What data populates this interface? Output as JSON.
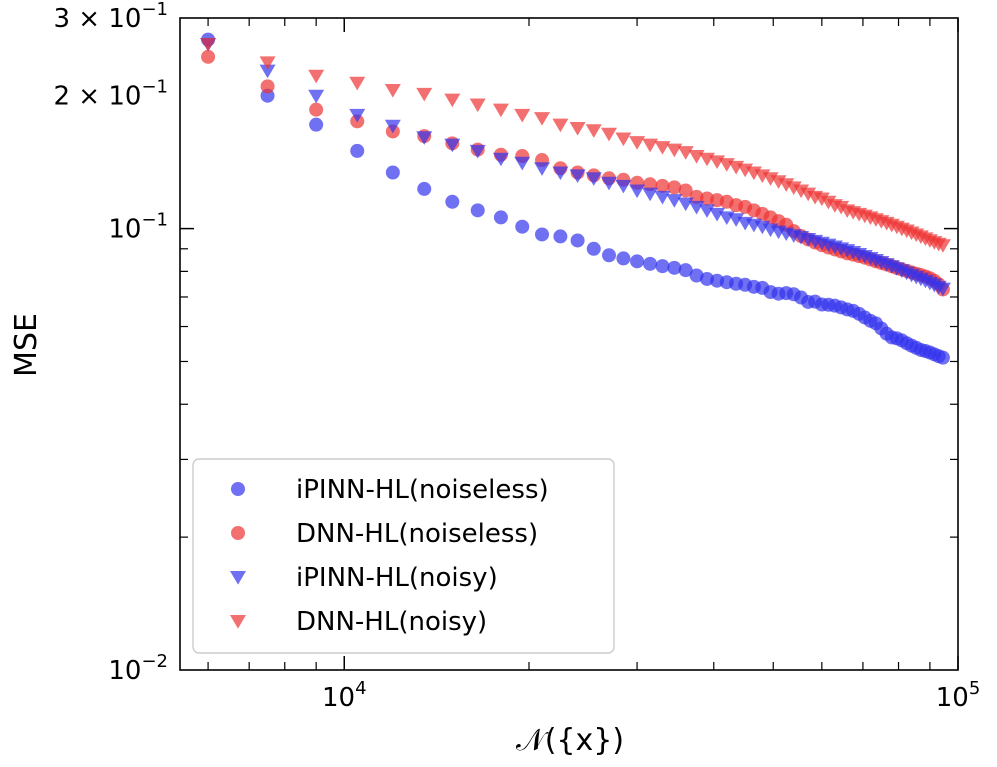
{
  "chart_data": {
    "type": "scatter",
    "xscale": "log",
    "yscale": "log",
    "xlim": [
      5400,
      100000
    ],
    "ylim": [
      0.01,
      0.3
    ],
    "xlabel": "𝒩({x})",
    "ylabel": "MSE",
    "grid": false,
    "legend_position": "lower-left",
    "x_major_ticks": [
      {
        "value": 10000,
        "base": "10",
        "exp": "4"
      },
      {
        "value": 100000,
        "base": "10",
        "exp": "5"
      }
    ],
    "x_minor_ticks": [
      6000,
      7000,
      8000,
      9000,
      20000,
      30000,
      40000,
      50000,
      60000,
      70000,
      80000,
      90000
    ],
    "y_ticks": [
      {
        "value": 0.3,
        "mantissa": "3 × ",
        "base": "10",
        "exp": "−1"
      },
      {
        "value": 0.2,
        "mantissa": "2 × ",
        "base": "10",
        "exp": "−1"
      },
      {
        "value": 0.1,
        "mantissa": "",
        "base": "10",
        "exp": "−1"
      },
      {
        "value": 0.01,
        "mantissa": "",
        "base": "10",
        "exp": "−2"
      }
    ],
    "y_minor_ticks": [
      0.02,
      0.03,
      0.04,
      0.05,
      0.06,
      0.07,
      0.08,
      0.09
    ],
    "series": [
      {
        "name": "iPINN-HL(noiseless)",
        "marker": "circle",
        "color": "#3333ee",
        "points": [
          [
            6000,
            0.268
          ],
          [
            7500,
            0.2
          ],
          [
            9000,
            0.172
          ],
          [
            10500,
            0.15
          ],
          [
            12000,
            0.134
          ],
          [
            13500,
            0.123
          ],
          [
            15000,
            0.115
          ],
          [
            16500,
            0.11
          ],
          [
            18000,
            0.106
          ],
          [
            19500,
            0.101
          ],
          [
            21000,
            0.097
          ],
          [
            22500,
            0.096
          ],
          [
            24000,
            0.094
          ],
          [
            25500,
            0.09
          ],
          [
            27000,
            0.087
          ],
          [
            28500,
            0.0856
          ],
          [
            30000,
            0.0843
          ],
          [
            31500,
            0.0832
          ],
          [
            33000,
            0.0822
          ],
          [
            34500,
            0.0815
          ],
          [
            36000,
            0.0805
          ],
          [
            37500,
            0.0783
          ],
          [
            39000,
            0.0769
          ],
          [
            40500,
            0.0762
          ],
          [
            42000,
            0.0756
          ],
          [
            43500,
            0.075
          ],
          [
            45000,
            0.0746
          ],
          [
            46500,
            0.0738
          ],
          [
            48000,
            0.0734
          ],
          [
            49500,
            0.0718
          ],
          [
            51000,
            0.0712
          ],
          [
            52500,
            0.0714
          ],
          [
            54000,
            0.071
          ],
          [
            55500,
            0.0698
          ],
          [
            57000,
            0.0682
          ],
          [
            58500,
            0.0683
          ],
          [
            60000,
            0.0673
          ],
          [
            61500,
            0.0672
          ],
          [
            63000,
            0.0669
          ],
          [
            64500,
            0.0663
          ],
          [
            66000,
            0.0656
          ],
          [
            67500,
            0.0651
          ],
          [
            69000,
            0.0641
          ],
          [
            70500,
            0.0629
          ],
          [
            72000,
            0.0618
          ],
          [
            73500,
            0.061
          ],
          [
            75000,
            0.0594
          ],
          [
            76500,
            0.0578
          ],
          [
            78000,
            0.0567
          ],
          [
            79500,
            0.0564
          ],
          [
            81000,
            0.0558
          ],
          [
            82500,
            0.055
          ],
          [
            84000,
            0.0543
          ],
          [
            85500,
            0.0537
          ],
          [
            87000,
            0.0531
          ],
          [
            88500,
            0.0528
          ],
          [
            90000,
            0.0524
          ],
          [
            91500,
            0.0519
          ],
          [
            93000,
            0.0514
          ],
          [
            94500,
            0.051
          ]
        ]
      },
      {
        "name": "DNN-HL(noiseless)",
        "marker": "circle",
        "color": "#ee3333",
        "points": [
          [
            6000,
            0.245
          ],
          [
            7500,
            0.21
          ],
          [
            9000,
            0.186
          ],
          [
            10500,
            0.175
          ],
          [
            12000,
            0.166
          ],
          [
            13500,
            0.162
          ],
          [
            15000,
            0.156
          ],
          [
            16500,
            0.151
          ],
          [
            18000,
            0.147
          ],
          [
            19500,
            0.146
          ],
          [
            21000,
            0.143
          ],
          [
            22500,
            0.137
          ],
          [
            24000,
            0.134
          ],
          [
            25500,
            0.132
          ],
          [
            27000,
            0.13
          ],
          [
            28500,
            0.129
          ],
          [
            30000,
            0.127
          ],
          [
            31500,
            0.126
          ],
          [
            33000,
            0.125
          ],
          [
            34500,
            0.124
          ],
          [
            36000,
            0.122
          ],
          [
            37500,
            0.118
          ],
          [
            39000,
            0.117
          ],
          [
            40500,
            0.116
          ],
          [
            42000,
            0.115
          ],
          [
            43500,
            0.113
          ],
          [
            45000,
            0.112
          ],
          [
            46500,
            0.11
          ],
          [
            48000,
            0.108
          ],
          [
            49500,
            0.106
          ],
          [
            51000,
            0.104
          ],
          [
            52500,
            0.102
          ],
          [
            54000,
            0.0987
          ],
          [
            55500,
            0.0962
          ],
          [
            57000,
            0.0945
          ],
          [
            58500,
            0.093
          ],
          [
            60000,
            0.0917
          ],
          [
            61500,
            0.0906
          ],
          [
            63000,
            0.0897
          ],
          [
            64500,
            0.0888
          ],
          [
            66000,
            0.0879
          ],
          [
            67500,
            0.0873
          ],
          [
            69000,
            0.0866
          ],
          [
            70500,
            0.0859
          ],
          [
            72000,
            0.0851
          ],
          [
            73500,
            0.0843
          ],
          [
            75000,
            0.0836
          ],
          [
            76500,
            0.0829
          ],
          [
            78000,
            0.0822
          ],
          [
            79500,
            0.0814
          ],
          [
            81000,
            0.0808
          ],
          [
            82500,
            0.0802
          ],
          [
            84000,
            0.0796
          ],
          [
            85500,
            0.079
          ],
          [
            87000,
            0.0785
          ],
          [
            88500,
            0.0779
          ],
          [
            90000,
            0.0772
          ],
          [
            91500,
            0.0762
          ],
          [
            93000,
            0.0748
          ],
          [
            94500,
            0.0728
          ]
        ]
      },
      {
        "name": "iPINN-HL(noisy)",
        "marker": "triangle-down",
        "color": "#3333ee",
        "points": [
          [
            6000,
            0.262
          ],
          [
            7500,
            0.228
          ],
          [
            9000,
            0.2
          ],
          [
            10500,
            0.181
          ],
          [
            12000,
            0.171
          ],
          [
            13500,
            0.161
          ],
          [
            15000,
            0.155
          ],
          [
            16500,
            0.15
          ],
          [
            18000,
            0.144
          ],
          [
            19500,
            0.141
          ],
          [
            21000,
            0.137
          ],
          [
            22500,
            0.134
          ],
          [
            24000,
            0.132
          ],
          [
            25500,
            0.13
          ],
          [
            27000,
            0.127
          ],
          [
            28500,
            0.125
          ],
          [
            30000,
            0.122
          ],
          [
            31500,
            0.12
          ],
          [
            33000,
            0.118
          ],
          [
            34500,
            0.116
          ],
          [
            36000,
            0.114
          ],
          [
            37500,
            0.112
          ],
          [
            39000,
            0.11
          ],
          [
            40500,
            0.108
          ],
          [
            42000,
            0.106
          ],
          [
            43500,
            0.105
          ],
          [
            45000,
            0.103
          ],
          [
            46500,
            0.102
          ],
          [
            48000,
            0.101
          ],
          [
            49500,
            0.0995
          ],
          [
            51000,
            0.0985
          ],
          [
            52500,
            0.0975
          ],
          [
            54000,
            0.0966
          ],
          [
            55500,
            0.0957
          ],
          [
            57000,
            0.0947
          ],
          [
            58500,
            0.0938
          ],
          [
            60000,
            0.0929
          ],
          [
            61500,
            0.092
          ],
          [
            63000,
            0.0911
          ],
          [
            64500,
            0.0902
          ],
          [
            66000,
            0.0894
          ],
          [
            67500,
            0.0885
          ],
          [
            69000,
            0.0876
          ],
          [
            70500,
            0.0867
          ],
          [
            72000,
            0.0858
          ],
          [
            73500,
            0.0849
          ],
          [
            75000,
            0.084
          ],
          [
            76500,
            0.0831
          ],
          [
            78000,
            0.0822
          ],
          [
            79500,
            0.0813
          ],
          [
            81000,
            0.0804
          ],
          [
            82500,
            0.0795
          ],
          [
            84000,
            0.0786
          ],
          [
            85500,
            0.0778
          ],
          [
            87000,
            0.077
          ],
          [
            88500,
            0.0762
          ],
          [
            90000,
            0.0754
          ],
          [
            91500,
            0.0746
          ],
          [
            93000,
            0.0738
          ],
          [
            94500,
            0.0731
          ]
        ]
      },
      {
        "name": "DNN-HL(noisy)",
        "marker": "triangle-down",
        "color": "#ee3333",
        "points": [
          [
            6000,
            0.262
          ],
          [
            7500,
            0.238
          ],
          [
            9000,
            0.222
          ],
          [
            10500,
            0.214
          ],
          [
            12000,
            0.206
          ],
          [
            13500,
            0.202
          ],
          [
            15000,
            0.196
          ],
          [
            16500,
            0.191
          ],
          [
            18000,
            0.186
          ],
          [
            19500,
            0.181
          ],
          [
            21000,
            0.178
          ],
          [
            22500,
            0.172
          ],
          [
            24000,
            0.169
          ],
          [
            25500,
            0.167
          ],
          [
            27000,
            0.164
          ],
          [
            28500,
            0.16
          ],
          [
            30000,
            0.157
          ],
          [
            31500,
            0.155
          ],
          [
            33000,
            0.153
          ],
          [
            34500,
            0.151
          ],
          [
            36000,
            0.149
          ],
          [
            37500,
            0.146
          ],
          [
            39000,
            0.144
          ],
          [
            40500,
            0.142
          ],
          [
            42000,
            0.14
          ],
          [
            43500,
            0.138
          ],
          [
            45000,
            0.136
          ],
          [
            46500,
            0.134
          ],
          [
            48000,
            0.132
          ],
          [
            49500,
            0.13
          ],
          [
            51000,
            0.128
          ],
          [
            52500,
            0.126
          ],
          [
            54000,
            0.124
          ],
          [
            55500,
            0.122
          ],
          [
            57000,
            0.12
          ],
          [
            58500,
            0.118
          ],
          [
            60000,
            0.117
          ],
          [
            61500,
            0.115
          ],
          [
            63000,
            0.113
          ],
          [
            64500,
            0.112
          ],
          [
            66000,
            0.11
          ],
          [
            67500,
            0.109
          ],
          [
            69000,
            0.108
          ],
          [
            70500,
            0.107
          ],
          [
            72000,
            0.106
          ],
          [
            73500,
            0.105
          ],
          [
            75000,
            0.104
          ],
          [
            76500,
            0.103
          ],
          [
            78000,
            0.102
          ],
          [
            79500,
            0.101
          ],
          [
            81000,
            0.1
          ],
          [
            82500,
            0.099
          ],
          [
            84000,
            0.098
          ],
          [
            85500,
            0.097
          ],
          [
            87000,
            0.096
          ],
          [
            88500,
            0.095
          ],
          [
            90000,
            0.0941
          ],
          [
            91500,
            0.0932
          ],
          [
            93000,
            0.0924
          ],
          [
            94500,
            0.0917
          ]
        ]
      }
    ]
  }
}
